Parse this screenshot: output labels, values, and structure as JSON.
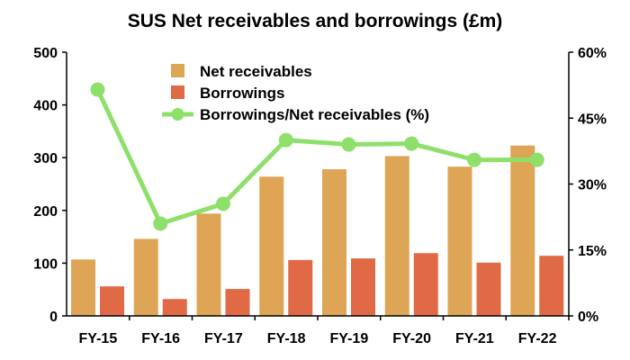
{
  "chart_data": {
    "type": "bar",
    "title": "SUS Net receivables and borrowings (£m)",
    "categories": [
      "FY-15",
      "FY-16",
      "FY-17",
      "FY-18",
      "FY-19",
      "FY-20",
      "FY-21",
      "FY-22"
    ],
    "series": [
      {
        "name": "Net receivables",
        "type": "bar",
        "axis": "left",
        "color": "#DDA555",
        "values": [
          107,
          146,
          194,
          264,
          278,
          303,
          283,
          323
        ]
      },
      {
        "name": "Borrowings",
        "type": "bar",
        "axis": "left",
        "color": "#E06A45",
        "values": [
          56,
          32,
          51,
          106,
          109,
          119,
          101,
          114
        ]
      },
      {
        "name": "Borrowings/Net receivables (%)",
        "type": "line",
        "axis": "right",
        "color": "#8EE06A",
        "values": [
          51.5,
          21.0,
          25.5,
          40.0,
          39.0,
          39.2,
          35.5,
          35.5
        ]
      }
    ],
    "y_left": {
      "min": 0,
      "max": 500,
      "ticks": [
        "0",
        "100",
        "200",
        "300",
        "400",
        "500"
      ]
    },
    "y_right": {
      "min": 0,
      "max": 60,
      "ticks": [
        "0%",
        "15%",
        "30%",
        "45%",
        "60%"
      ]
    },
    "grid": false,
    "legend_position": "top-center"
  }
}
